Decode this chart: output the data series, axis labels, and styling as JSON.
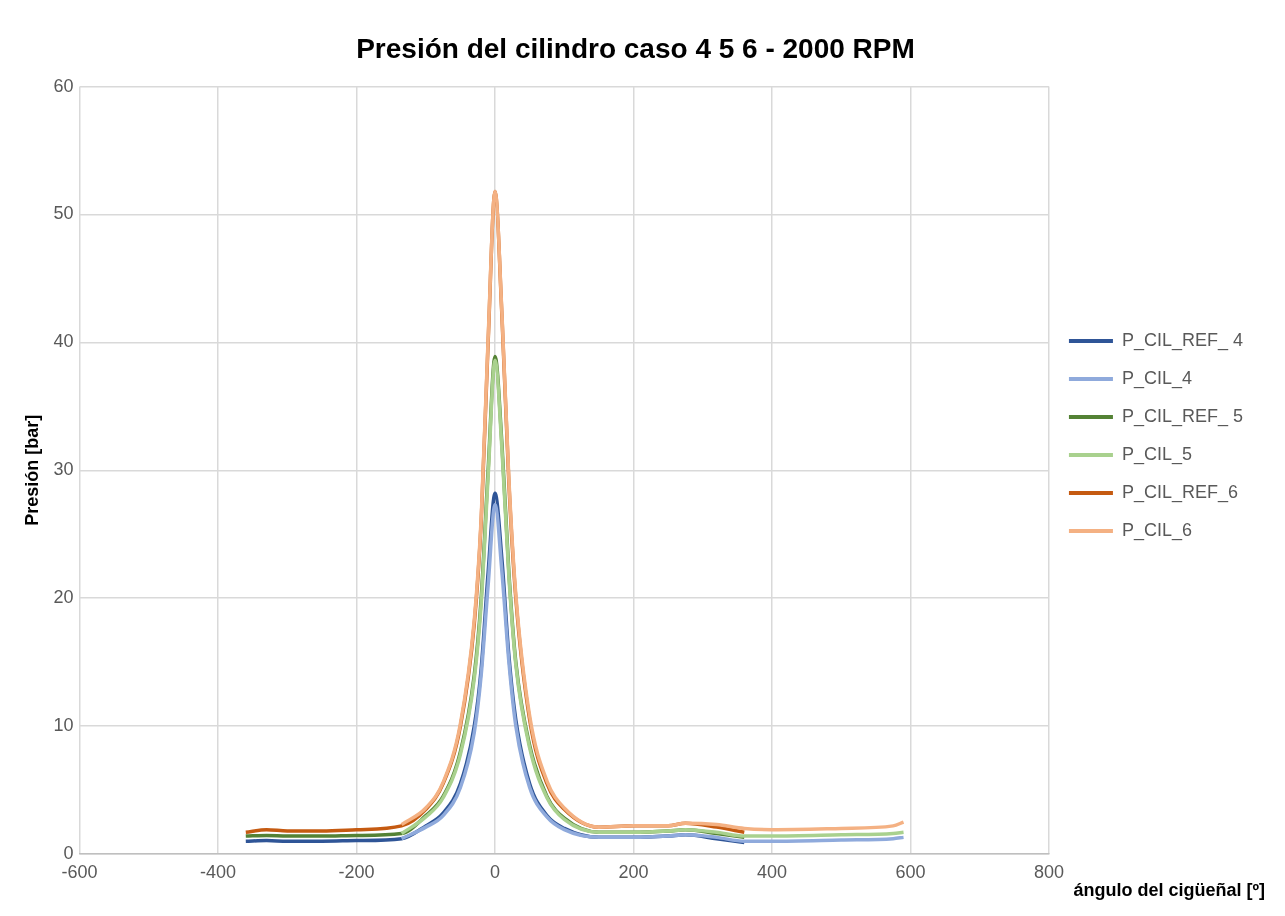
{
  "chart_data": {
    "type": "line",
    "title": "Presión del cilindro caso 4 5 6 - 2000 RPM",
    "xlabel": "ángulo del cigüeñal [º]",
    "ylabel": "Presión [bar]",
    "xlim": [
      -600,
      800
    ],
    "xticks": [
      -600,
      -400,
      -200,
      0,
      200,
      400,
      600,
      800
    ],
    "ylim": [
      0,
      60
    ],
    "yticks": [
      0,
      10,
      20,
      30,
      40,
      50,
      60
    ],
    "grid": true,
    "legend": "right",
    "marker": "none",
    "line_style": "solid",
    "series": [
      {
        "name": "P_CIL_REF_ 4",
        "color": "#2f5597",
        "x": [
          -360,
          -330,
          -300,
          -250,
          -200,
          -135,
          -100,
          -75,
          -50,
          -30,
          -20,
          -10,
          0,
          10,
          20,
          30,
          50,
          75,
          100,
          150,
          200,
          250,
          275,
          320,
          360
        ],
        "values": [
          1.0,
          1.05,
          1.0,
          1.0,
          1.05,
          1.2,
          2.2,
          3.2,
          5.5,
          10,
          14.5,
          22,
          28.2,
          23,
          15.5,
          10.5,
          5.5,
          3,
          2,
          1.3,
          1.3,
          1.4,
          1.5,
          1.2,
          0.9
        ]
      },
      {
        "name": "P_CIL_4",
        "color": "#8faadc",
        "x": [
          -135,
          -100,
          -75,
          -50,
          -30,
          -20,
          -10,
          0,
          10,
          20,
          30,
          50,
          75,
          100,
          150,
          200,
          250,
          275,
          320,
          360,
          400,
          500,
          575,
          590
        ],
        "values": [
          1.2,
          2.1,
          3.0,
          5.2,
          9.5,
          14,
          21,
          27.3,
          22,
          15,
          10,
          5.2,
          2.9,
          1.9,
          1.3,
          1.3,
          1.4,
          1.5,
          1.3,
          1.0,
          1.0,
          1.1,
          1.2,
          1.3
        ]
      },
      {
        "name": "P_CIL_REF_ 5",
        "color": "#548235",
        "x": [
          -360,
          -330,
          -300,
          -250,
          -200,
          -135,
          -100,
          -75,
          -50,
          -30,
          -20,
          -10,
          0,
          10,
          20,
          30,
          50,
          75,
          100,
          150,
          200,
          250,
          275,
          320,
          360
        ],
        "values": [
          1.4,
          1.45,
          1.4,
          1.4,
          1.45,
          1.6,
          3,
          4.5,
          8,
          14,
          20,
          30,
          38.9,
          32,
          22,
          15,
          8.5,
          4.5,
          2.8,
          1.7,
          1.7,
          1.8,
          1.9,
          1.6,
          1.3
        ]
      },
      {
        "name": "P_CIL_5",
        "color": "#a9d18e",
        "x": [
          -135,
          -100,
          -75,
          -50,
          -30,
          -20,
          -10,
          0,
          10,
          20,
          30,
          50,
          75,
          100,
          150,
          200,
          250,
          275,
          320,
          360,
          400,
          500,
          575,
          590
        ],
        "values": [
          1.6,
          2.9,
          4.4,
          7.8,
          13.7,
          19.6,
          29.5,
          38.6,
          31.6,
          21.7,
          14.8,
          8.3,
          4.4,
          2.7,
          1.7,
          1.7,
          1.8,
          1.9,
          1.7,
          1.4,
          1.4,
          1.5,
          1.6,
          1.7
        ]
      },
      {
        "name": "P_CIL_REF_6",
        "color": "#c55a11",
        "x": [
          -360,
          -330,
          -300,
          -250,
          -200,
          -135,
          -100,
          -75,
          -50,
          -30,
          -20,
          -10,
          0,
          10,
          20,
          30,
          50,
          75,
          100,
          150,
          200,
          250,
          275,
          320,
          360
        ],
        "values": [
          1.7,
          1.9,
          1.8,
          1.8,
          1.9,
          2.2,
          3.5,
          5.5,
          10,
          18,
          26,
          40,
          51.8,
          42,
          29,
          20,
          10.5,
          5.5,
          3.5,
          2.1,
          2.2,
          2.2,
          2.4,
          2.1,
          1.7
        ]
      },
      {
        "name": "P_CIL_6",
        "color": "#f4b183",
        "x": [
          -135,
          -100,
          -75,
          -50,
          -30,
          -20,
          -10,
          0,
          10,
          20,
          30,
          50,
          75,
          100,
          150,
          200,
          250,
          275,
          320,
          360,
          400,
          500,
          575,
          590
        ],
        "values": [
          2.3,
          3.6,
          5.6,
          10.2,
          18.3,
          26.3,
          40.3,
          51.8,
          42.2,
          29.3,
          20.3,
          10.8,
          5.7,
          3.6,
          2.1,
          2.2,
          2.2,
          2.4,
          2.3,
          2.0,
          1.9,
          2.0,
          2.2,
          2.5
        ]
      }
    ]
  }
}
